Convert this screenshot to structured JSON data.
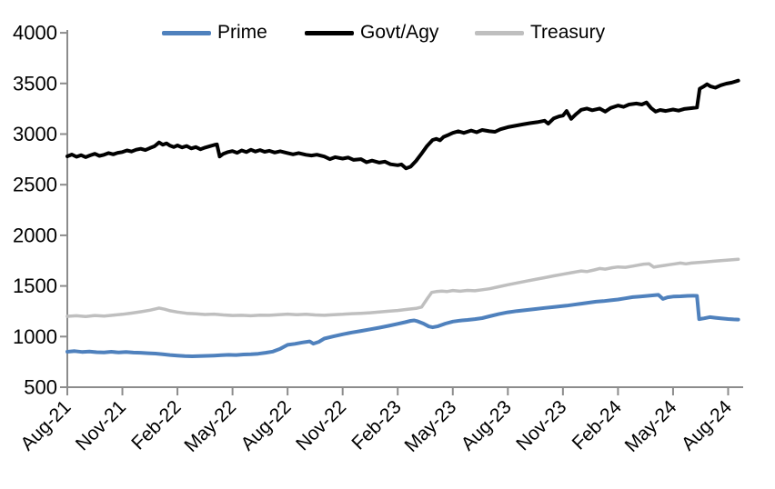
{
  "chart_data": {
    "type": "line",
    "title": "",
    "xlabel": "",
    "ylabel": "",
    "ylim": [
      500,
      4000
    ],
    "y_ticks": [
      500,
      1000,
      1500,
      2000,
      2500,
      3000,
      3500,
      4000
    ],
    "x_tick_labels": [
      "Aug-21",
      "Nov-21",
      "Feb-22",
      "May-22",
      "Aug-22",
      "Nov-22",
      "Feb-23",
      "May-23",
      "Aug-23",
      "Nov-23",
      "Feb-24",
      "May-24",
      "Aug-24"
    ],
    "x_unit": "months since Aug-21, ticks every 3 months",
    "grid": false,
    "legend_position": "top",
    "legend": [
      {
        "name": "Prime",
        "color": "#4f81bd"
      },
      {
        "name": "Govt/Agy",
        "color": "#000000"
      },
      {
        "name": "Treasury",
        "color": "#bfbfbf"
      }
    ],
    "series": [
      {
        "name": "Prime",
        "color": "#4f81bd",
        "width": 4,
        "points": [
          [
            0,
            850
          ],
          [
            0.4,
            856
          ],
          [
            0.8,
            848
          ],
          [
            1.2,
            853
          ],
          [
            1.6,
            846
          ],
          [
            2,
            844
          ],
          [
            2.4,
            850
          ],
          [
            2.8,
            843
          ],
          [
            3.2,
            848
          ],
          [
            3.6,
            842
          ],
          [
            4,
            840
          ],
          [
            4.4,
            836
          ],
          [
            4.8,
            832
          ],
          [
            5.2,
            826
          ],
          [
            5.6,
            818
          ],
          [
            6,
            812
          ],
          [
            6.4,
            808
          ],
          [
            6.8,
            805
          ],
          [
            7.2,
            807
          ],
          [
            7.6,
            810
          ],
          [
            8,
            812
          ],
          [
            8.4,
            816
          ],
          [
            8.8,
            820
          ],
          [
            9.2,
            818
          ],
          [
            9.6,
            823
          ],
          [
            10,
            826
          ],
          [
            10.4,
            830
          ],
          [
            10.8,
            840
          ],
          [
            11.2,
            852
          ],
          [
            11.6,
            880
          ],
          [
            12,
            918
          ],
          [
            12.4,
            928
          ],
          [
            12.8,
            942
          ],
          [
            13.2,
            952
          ],
          [
            13.4,
            930
          ],
          [
            13.7,
            948
          ],
          [
            14,
            980
          ],
          [
            14.5,
            1002
          ],
          [
            15,
            1022
          ],
          [
            15.5,
            1040
          ],
          [
            16,
            1056
          ],
          [
            16.5,
            1072
          ],
          [
            17,
            1088
          ],
          [
            17.5,
            1106
          ],
          [
            18,
            1126
          ],
          [
            18.4,
            1142
          ],
          [
            18.7,
            1155
          ],
          [
            18.9,
            1160
          ],
          [
            19.1,
            1150
          ],
          [
            19.4,
            1128
          ],
          [
            19.7,
            1100
          ],
          [
            19.9,
            1092
          ],
          [
            20.2,
            1102
          ],
          [
            20.6,
            1128
          ],
          [
            21,
            1148
          ],
          [
            21.4,
            1158
          ],
          [
            21.8,
            1164
          ],
          [
            22.2,
            1172
          ],
          [
            22.6,
            1182
          ],
          [
            23,
            1200
          ],
          [
            23.5,
            1222
          ],
          [
            24,
            1240
          ],
          [
            24.5,
            1252
          ],
          [
            25,
            1262
          ],
          [
            25.5,
            1272
          ],
          [
            26,
            1283
          ],
          [
            26.4,
            1290
          ],
          [
            26.8,
            1298
          ],
          [
            27.2,
            1305
          ],
          [
            27.6,
            1315
          ],
          [
            28,
            1325
          ],
          [
            28.4,
            1335
          ],
          [
            28.8,
            1345
          ],
          [
            29.2,
            1350
          ],
          [
            29.6,
            1358
          ],
          [
            30,
            1366
          ],
          [
            30.4,
            1378
          ],
          [
            30.8,
            1390
          ],
          [
            31.2,
            1396
          ],
          [
            31.6,
            1402
          ],
          [
            32,
            1408
          ],
          [
            32.2,
            1412
          ],
          [
            32.45,
            1372
          ],
          [
            32.7,
            1388
          ],
          [
            33,
            1395
          ],
          [
            33.4,
            1398
          ],
          [
            33.8,
            1402
          ],
          [
            34.1,
            1403
          ],
          [
            34.3,
            1402
          ],
          [
            34.42,
            1172
          ],
          [
            34.7,
            1180
          ],
          [
            35,
            1192
          ],
          [
            35.3,
            1186
          ],
          [
            35.6,
            1180
          ],
          [
            36,
            1173
          ],
          [
            36.3,
            1170
          ],
          [
            36.55,
            1168
          ]
        ]
      },
      {
        "name": "Govt/Agy",
        "color": "#000000",
        "width": 4,
        "points": [
          [
            0,
            2780
          ],
          [
            0.25,
            2798
          ],
          [
            0.5,
            2776
          ],
          [
            0.75,
            2792
          ],
          [
            1,
            2772
          ],
          [
            1.25,
            2790
          ],
          [
            1.5,
            2805
          ],
          [
            1.75,
            2785
          ],
          [
            2,
            2795
          ],
          [
            2.25,
            2812
          ],
          [
            2.5,
            2800
          ],
          [
            2.75,
            2815
          ],
          [
            3,
            2822
          ],
          [
            3.25,
            2838
          ],
          [
            3.5,
            2828
          ],
          [
            3.75,
            2846
          ],
          [
            4,
            2855
          ],
          [
            4.25,
            2842
          ],
          [
            4.5,
            2862
          ],
          [
            4.75,
            2880
          ],
          [
            5,
            2917
          ],
          [
            5.2,
            2895
          ],
          [
            5.4,
            2908
          ],
          [
            5.6,
            2885
          ],
          [
            5.8,
            2872
          ],
          [
            6,
            2888
          ],
          [
            6.25,
            2868
          ],
          [
            6.5,
            2882
          ],
          [
            6.75,
            2858
          ],
          [
            7,
            2872
          ],
          [
            7.25,
            2850
          ],
          [
            7.5,
            2866
          ],
          [
            7.75,
            2880
          ],
          [
            8,
            2892
          ],
          [
            8.15,
            2898
          ],
          [
            8.3,
            2778
          ],
          [
            8.5,
            2805
          ],
          [
            8.75,
            2822
          ],
          [
            9,
            2832
          ],
          [
            9.25,
            2815
          ],
          [
            9.5,
            2838
          ],
          [
            9.75,
            2822
          ],
          [
            10,
            2845
          ],
          [
            10.25,
            2828
          ],
          [
            10.5,
            2842
          ],
          [
            10.75,
            2825
          ],
          [
            11,
            2835
          ],
          [
            11.3,
            2818
          ],
          [
            11.6,
            2830
          ],
          [
            12,
            2812
          ],
          [
            12.3,
            2800
          ],
          [
            12.6,
            2812
          ],
          [
            13,
            2795
          ],
          [
            13.3,
            2788
          ],
          [
            13.6,
            2796
          ],
          [
            14,
            2778
          ],
          [
            14.3,
            2752
          ],
          [
            14.6,
            2772
          ],
          [
            15,
            2758
          ],
          [
            15.3,
            2768
          ],
          [
            15.6,
            2745
          ],
          [
            16,
            2752
          ],
          [
            16.3,
            2722
          ],
          [
            16.6,
            2738
          ],
          [
            17,
            2718
          ],
          [
            17.3,
            2728
          ],
          [
            17.6,
            2702
          ],
          [
            18,
            2692
          ],
          [
            18.2,
            2700
          ],
          [
            18.45,
            2662
          ],
          [
            18.7,
            2678
          ],
          [
            19,
            2735
          ],
          [
            19.3,
            2808
          ],
          [
            19.6,
            2882
          ],
          [
            19.9,
            2942
          ],
          [
            20.1,
            2952
          ],
          [
            20.3,
            2938
          ],
          [
            20.5,
            2972
          ],
          [
            20.8,
            2995
          ],
          [
            21,
            3012
          ],
          [
            21.3,
            3028
          ],
          [
            21.6,
            3012
          ],
          [
            22,
            3035
          ],
          [
            22.3,
            3018
          ],
          [
            22.6,
            3040
          ],
          [
            23,
            3028
          ],
          [
            23.3,
            3022
          ],
          [
            23.6,
            3048
          ],
          [
            24,
            3068
          ],
          [
            24.4,
            3082
          ],
          [
            24.8,
            3095
          ],
          [
            25.2,
            3108
          ],
          [
            25.6,
            3118
          ],
          [
            26,
            3132
          ],
          [
            26.2,
            3102
          ],
          [
            26.5,
            3155
          ],
          [
            26.8,
            3175
          ],
          [
            27,
            3182
          ],
          [
            27.2,
            3228
          ],
          [
            27.45,
            3150
          ],
          [
            27.7,
            3195
          ],
          [
            28,
            3240
          ],
          [
            28.3,
            3252
          ],
          [
            28.6,
            3235
          ],
          [
            29,
            3252
          ],
          [
            29.3,
            3222
          ],
          [
            29.6,
            3258
          ],
          [
            30,
            3282
          ],
          [
            30.3,
            3268
          ],
          [
            30.6,
            3292
          ],
          [
            31,
            3302
          ],
          [
            31.3,
            3292
          ],
          [
            31.55,
            3312
          ],
          [
            31.8,
            3258
          ],
          [
            32.05,
            3222
          ],
          [
            32.3,
            3238
          ],
          [
            32.6,
            3228
          ],
          [
            33,
            3242
          ],
          [
            33.3,
            3232
          ],
          [
            33.6,
            3248
          ],
          [
            34,
            3256
          ],
          [
            34.3,
            3262
          ],
          [
            34.45,
            3448
          ],
          [
            34.65,
            3468
          ],
          [
            34.85,
            3492
          ],
          [
            35.05,
            3470
          ],
          [
            35.3,
            3458
          ],
          [
            35.6,
            3482
          ],
          [
            35.9,
            3498
          ],
          [
            36.2,
            3508
          ],
          [
            36.55,
            3528
          ]
        ]
      },
      {
        "name": "Treasury",
        "color": "#bfbfbf",
        "width": 3.5,
        "points": [
          [
            0,
            1200
          ],
          [
            0.5,
            1206
          ],
          [
            1,
            1198
          ],
          [
            1.5,
            1208
          ],
          [
            2,
            1202
          ],
          [
            2.5,
            1212
          ],
          [
            3,
            1220
          ],
          [
            3.5,
            1232
          ],
          [
            4,
            1245
          ],
          [
            4.5,
            1260
          ],
          [
            5,
            1282
          ],
          [
            5.3,
            1270
          ],
          [
            5.6,
            1255
          ],
          [
            6,
            1242
          ],
          [
            6.5,
            1230
          ],
          [
            7,
            1224
          ],
          [
            7.5,
            1218
          ],
          [
            8,
            1222
          ],
          [
            8.5,
            1214
          ],
          [
            9,
            1208
          ],
          [
            9.5,
            1210
          ],
          [
            10,
            1206
          ],
          [
            10.5,
            1212
          ],
          [
            11,
            1210
          ],
          [
            11.5,
            1216
          ],
          [
            12,
            1222
          ],
          [
            12.5,
            1216
          ],
          [
            13,
            1221
          ],
          [
            13.5,
            1214
          ],
          [
            14,
            1210
          ],
          [
            14.5,
            1216
          ],
          [
            15,
            1220
          ],
          [
            15.5,
            1226
          ],
          [
            16,
            1230
          ],
          [
            16.5,
            1235
          ],
          [
            17,
            1242
          ],
          [
            17.5,
            1250
          ],
          [
            18,
            1258
          ],
          [
            18.5,
            1268
          ],
          [
            19,
            1278
          ],
          [
            19.3,
            1292
          ],
          [
            19.6,
            1372
          ],
          [
            19.85,
            1436
          ],
          [
            20.1,
            1444
          ],
          [
            20.4,
            1450
          ],
          [
            20.7,
            1445
          ],
          [
            21,
            1455
          ],
          [
            21.4,
            1448
          ],
          [
            21.8,
            1456
          ],
          [
            22.2,
            1452
          ],
          [
            22.6,
            1462
          ],
          [
            23,
            1472
          ],
          [
            23.5,
            1492
          ],
          [
            24,
            1512
          ],
          [
            24.5,
            1530
          ],
          [
            25,
            1548
          ],
          [
            25.5,
            1565
          ],
          [
            26,
            1582
          ],
          [
            26.5,
            1600
          ],
          [
            27,
            1616
          ],
          [
            27.5,
            1632
          ],
          [
            28,
            1648
          ],
          [
            28.3,
            1642
          ],
          [
            28.7,
            1658
          ],
          [
            29,
            1672
          ],
          [
            29.3,
            1666
          ],
          [
            29.7,
            1680
          ],
          [
            30,
            1688
          ],
          [
            30.4,
            1684
          ],
          [
            30.8,
            1696
          ],
          [
            31.1,
            1706
          ],
          [
            31.4,
            1715
          ],
          [
            31.7,
            1718
          ],
          [
            31.95,
            1686
          ],
          [
            32.2,
            1694
          ],
          [
            32.5,
            1702
          ],
          [
            32.8,
            1710
          ],
          [
            33.1,
            1718
          ],
          [
            33.4,
            1726
          ],
          [
            33.7,
            1718
          ],
          [
            34,
            1726
          ],
          [
            34.4,
            1732
          ],
          [
            34.8,
            1738
          ],
          [
            35.2,
            1744
          ],
          [
            35.6,
            1750
          ],
          [
            36,
            1756
          ],
          [
            36.55,
            1763
          ]
        ]
      }
    ]
  },
  "colors": {
    "axis": "#8c8c8c",
    "text": "#000000",
    "background": "#ffffff"
  }
}
